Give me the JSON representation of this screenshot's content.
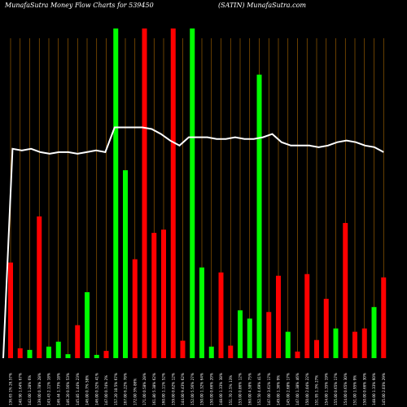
{
  "header": {
    "left": "MunafaSutra  Money Flow  Charts for 539450",
    "center": "(SATIN) MunafaSutra.com"
  },
  "chart_data": {
    "type": "bar",
    "title": "MunafaSutra  Money Flow  Charts for 539450",
    "subtitle": "(SATIN) MunafaSutra.com",
    "ylim": [
      0,
      100
    ],
    "grid": "vertical orange lines",
    "colors": {
      "up": "#00ff00",
      "down": "#ff0000",
      "line": "#ffffff",
      "grid": "#b06a00",
      "background": "#000000"
    },
    "categories": [
      "136.65 1% 26.57%",
      "140.90 1.64% 67%",
      "142.00 1.28% 6%",
      "139.00 0.78% 28%",
      "143.43 2.11% 18%",
      "146.44 1.73% 18%",
      "146.20 0.56% 53%",
      "145.85 1.44% 23%",
      "146.00 0.7% 58%",
      "146.00 0.32% 41%",
      "147.00 0.74% 2%",
      "157.20 10.5% 67%",
      "167.00 6.22% 78%",
      "172.00 3% 86%",
      "171.00 0.58% 28%",
      "161.80 5.38% 62%",
      "160.00 1.11% 52%",
      "159.00 0.62% 12%",
      "144.00 9.43% 62%",
      "152.00 5.56% 27%",
      "150.00 1.32% 64%",
      "150.00 0.66% 20%",
      "148.00 1.33% 38%",
      "151.70 2.5% 13%",
      "153.00 0.86% 12%",
      "160.00 4.58% 75%",
      "152.50 4.69% 41%",
      "147.00 3.61% 17%",
      "149.00 1.36% 9%",
      "145.00 2.68% 17%",
      "147.00 1.38% 46%",
      "150.00 2.04% 22%",
      "151.95 1.3% 27%",
      "154.00 1.35% 19%",
      "155.00 0.65% 17%",
      "154.00 0.65% 30%",
      "151.00 1.95% 9%",
      "150.00 0.66% 30%",
      "148.00 1.33% 60%",
      "145.00 2.03% 29%"
    ],
    "bars": [
      {
        "value": 29,
        "color": "red"
      },
      {
        "value": 3,
        "color": "red"
      },
      {
        "value": 2.5,
        "color": "green"
      },
      {
        "value": 43,
        "color": "red"
      },
      {
        "value": 3.5,
        "color": "green"
      },
      {
        "value": 5,
        "color": "green"
      },
      {
        "value": 1.2,
        "color": "green"
      },
      {
        "value": 10,
        "color": "red"
      },
      {
        "value": 20,
        "color": "green"
      },
      {
        "value": 1,
        "color": "green"
      },
      {
        "value": 2.2,
        "color": "red"
      },
      {
        "value": 100,
        "color": "green"
      },
      {
        "value": 57,
        "color": "green"
      },
      {
        "value": 30,
        "color": "red"
      },
      {
        "value": 100,
        "color": "red"
      },
      {
        "value": 38,
        "color": "red"
      },
      {
        "value": 39,
        "color": "red"
      },
      {
        "value": 100,
        "color": "red"
      },
      {
        "value": 5.3,
        "color": "red"
      },
      {
        "value": 100,
        "color": "green"
      },
      {
        "value": 27.5,
        "color": "green"
      },
      {
        "value": 3.5,
        "color": "green"
      },
      {
        "value": 26,
        "color": "red"
      },
      {
        "value": 3.8,
        "color": "red"
      },
      {
        "value": 14.5,
        "color": "green"
      },
      {
        "value": 12,
        "color": "green"
      },
      {
        "value": 86,
        "color": "green"
      },
      {
        "value": 14,
        "color": "red"
      },
      {
        "value": 25,
        "color": "red"
      },
      {
        "value": 8,
        "color": "green"
      },
      {
        "value": 2,
        "color": "red"
      },
      {
        "value": 25.5,
        "color": "red"
      },
      {
        "value": 5.5,
        "color": "red"
      },
      {
        "value": 18,
        "color": "red"
      },
      {
        "value": 9,
        "color": "green"
      },
      {
        "value": 41,
        "color": "red"
      },
      {
        "value": 8,
        "color": "red"
      },
      {
        "value": 9,
        "color": "red"
      },
      {
        "value": 15.5,
        "color": "green"
      },
      {
        "value": 24.5,
        "color": "red"
      }
    ],
    "line": [
      0,
      63.5,
      63,
      63.5,
      62.5,
      62,
      62.5,
      62.5,
      62,
      62.5,
      63,
      62.5,
      70,
      70,
      70,
      70,
      69.5,
      68,
      66,
      64.5,
      67,
      67,
      67,
      66.5,
      66.5,
      67,
      66.5,
      66.5,
      67,
      68,
      65.5,
      64.5,
      64.5,
      64.5,
      64,
      64.5,
      65.5,
      66,
      65.5,
      64.5,
      64,
      62.5
    ]
  }
}
